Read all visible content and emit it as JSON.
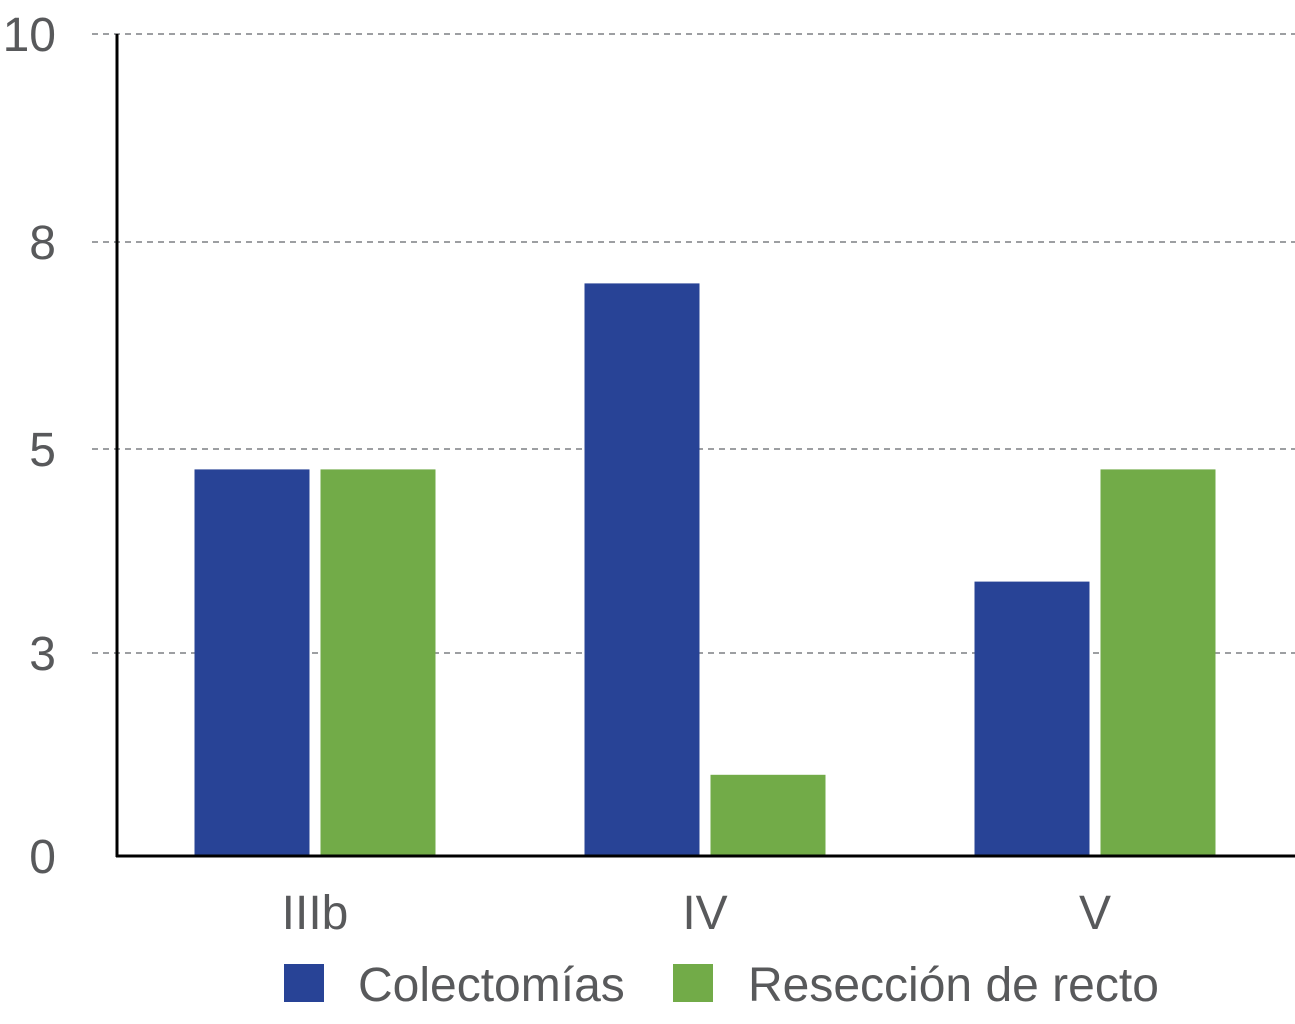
{
  "chart_data": {
    "type": "bar",
    "categories": [
      "IIIb",
      "IV",
      "V"
    ],
    "series": [
      {
        "name": "Colectomías",
        "values": [
          4.8,
          7.4,
          3.7
        ],
        "color": "#284396"
      },
      {
        "name": "Resección de recto",
        "values": [
          4.8,
          1.2,
          4.8
        ],
        "color": "#72ab48"
      }
    ],
    "y_ticks": [
      {
        "label": "0",
        "value": 0
      },
      {
        "label": "3",
        "value": 3
      },
      {
        "label": "5",
        "value": 5
      },
      {
        "label": "8",
        "value": 8
      },
      {
        "label": "10",
        "value": 10
      }
    ],
    "ylim": [
      0,
      10
    ],
    "grid": "dashed horizontal",
    "legend_position": "bottom"
  }
}
